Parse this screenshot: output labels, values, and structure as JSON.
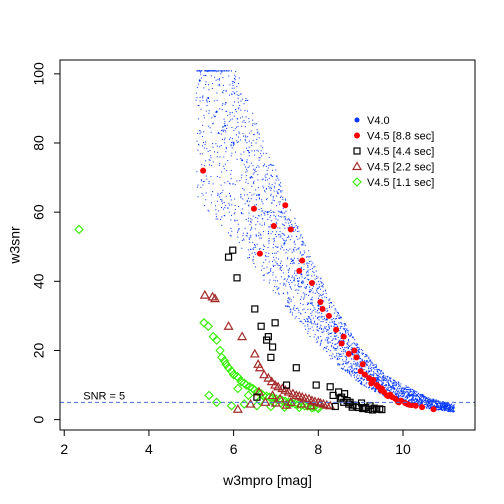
{
  "chart_data": {
    "type": "scatter",
    "title": "",
    "xlabel": "w3mpro [mag]",
    "ylabel": "w3snr",
    "xlim": [
      1.9,
      11.7
    ],
    "ylim": [
      -3,
      104
    ],
    "xticks": [
      2,
      4,
      6,
      8,
      10
    ],
    "yticks": [
      0,
      20,
      40,
      60,
      80,
      100
    ],
    "grid": false,
    "legend_position": "top-right",
    "reference_line": {
      "y": 5,
      "label": "SNR = 5",
      "style": "dashed",
      "color": "#4a6fd0"
    },
    "series": [
      {
        "name": "V4.0",
        "marker": "dot",
        "color": "#0033ff",
        "description_ref": "dense cloud approx. 2900 points, mag 5.1-11.2, snr falling from ~100 to ~3",
        "x": [
          5.2,
          5.4,
          5.6,
          5.8,
          6.0,
          6.2,
          6.4,
          6.6,
          6.8,
          7.0,
          7.2,
          7.4,
          7.6,
          7.8,
          8.0,
          8.2,
          8.4,
          8.6,
          8.8,
          9.0,
          9.2,
          9.4,
          9.6,
          9.8,
          10.0,
          10.2,
          10.4,
          10.6,
          10.8,
          11.0,
          11.2
        ],
        "y": [
          98,
          93,
          89,
          85,
          80,
          75,
          70,
          65,
          60,
          56,
          51,
          46,
          42,
          37,
          33,
          29,
          25,
          22,
          19,
          16,
          14,
          12,
          10,
          9,
          8,
          7,
          6,
          5,
          4.5,
          4,
          3.5
        ]
      },
      {
        "name": "V4.5 [8.8 sec]",
        "marker": "filled-circle",
        "color": "#ff0000",
        "x": [
          5.28,
          6.48,
          6.62,
          7.22,
          7.35,
          7.62,
          7.85,
          8.05,
          8.25,
          8.42,
          8.55,
          8.72,
          8.9,
          9.05,
          9.1,
          9.2,
          9.3,
          9.38,
          9.42,
          9.5,
          9.55,
          9.62,
          9.7,
          9.75,
          9.82,
          9.9,
          9.95,
          10.05,
          10.1,
          10.2,
          10.3,
          10.45,
          10.72,
          6.95,
          7.55,
          8.1,
          8.6,
          8.85,
          9.0,
          9.25,
          9.48,
          9.65,
          9.88,
          10.15
        ],
        "y": [
          72,
          61,
          48,
          62,
          55,
          46,
          39.5,
          34,
          30,
          26,
          22,
          19,
          18,
          16,
          13,
          12,
          11.5,
          10,
          9.5,
          9,
          8,
          7,
          7.2,
          6.5,
          6,
          5,
          5.5,
          4.8,
          4.5,
          4.2,
          4,
          3.6,
          3,
          56,
          43,
          32,
          24,
          20,
          14,
          10.5,
          8.5,
          6.8,
          5.2,
          4.3
        ]
      },
      {
        "name": "V4.5 [4.4 sec]",
        "marker": "open-square",
        "color": "#000000",
        "x": [
          5.88,
          5.98,
          6.08,
          6.5,
          6.65,
          6.78,
          6.82,
          6.88,
          6.92,
          6.98,
          7.48,
          7.95,
          8.28,
          8.35,
          8.48,
          8.52,
          8.55,
          8.6,
          8.62,
          8.68,
          8.72,
          8.75,
          8.82,
          8.9,
          8.95,
          9.02,
          9.05,
          9.12,
          9.18,
          9.22,
          9.28,
          9.32,
          9.38,
          9.45,
          9.5,
          6.55,
          7.25,
          8.4,
          8.8,
          9.08
        ],
        "y": [
          47,
          49,
          41,
          32,
          27,
          23,
          24,
          18,
          21,
          28,
          15,
          10,
          9.5,
          7,
          8,
          6,
          6.5,
          5,
          7.5,
          5.5,
          4.5,
          5,
          4.2,
          4,
          3.5,
          4.8,
          3.2,
          3.5,
          3,
          4,
          2.8,
          3.3,
          3,
          3.1,
          2.9,
          6.5,
          10,
          3.8,
          3.6,
          3.3
        ]
      },
      {
        "name": "V4.5 [2.2 sec]",
        "marker": "open-triangle",
        "color": "#a52a2a",
        "x": [
          5.32,
          5.5,
          5.56,
          5.88,
          6.2,
          6.5,
          6.58,
          6.62,
          6.72,
          6.82,
          6.9,
          6.98,
          7.05,
          7.15,
          7.22,
          7.3,
          7.4,
          7.48,
          7.55,
          7.62,
          7.7,
          7.78,
          7.85,
          7.92,
          8.0,
          8.05,
          8.12,
          8.2,
          8.28,
          6.6,
          6.92,
          7.1,
          7.35,
          7.6,
          7.82,
          6.1,
          6.4,
          6.75,
          7.0,
          7.25
        ],
        "y": [
          36,
          35.5,
          35,
          27,
          24,
          19,
          16,
          15,
          13,
          12,
          11,
          10,
          9.5,
          9,
          8.5,
          8,
          7.5,
          7,
          6.8,
          6.5,
          6.2,
          6,
          5.5,
          5.2,
          5,
          4.8,
          4.5,
          4.2,
          4,
          8,
          7,
          6,
          5,
          4.5,
          4,
          3,
          4.5,
          5,
          4.8,
          4.2
        ]
      },
      {
        "name": "V4.5 [1.1 sec]",
        "marker": "open-diamond",
        "color": "#33ee00",
        "x": [
          2.35,
          5.3,
          5.4,
          5.52,
          5.6,
          5.68,
          5.72,
          5.78,
          5.82,
          5.88,
          5.95,
          6.0,
          6.08,
          6.12,
          6.18,
          6.25,
          6.3,
          6.38,
          6.45,
          6.5,
          6.58,
          6.65,
          6.7,
          6.78,
          6.85,
          6.92,
          7.0,
          7.08,
          7.15,
          7.22,
          7.3,
          7.38,
          7.45,
          7.52,
          7.6,
          7.68,
          7.75,
          7.82,
          7.9,
          7.98,
          5.42,
          5.6,
          5.95,
          6.25,
          6.55,
          6.88,
          7.2,
          7.55,
          7.85,
          8.0,
          6.1,
          6.35,
          6.62,
          6.95,
          7.28
        ],
        "y": [
          55,
          28,
          27,
          24,
          23,
          20,
          18,
          17,
          16,
          15,
          14,
          13,
          12.5,
          12,
          11,
          10.5,
          10,
          9.5,
          9,
          8.5,
          8,
          7.5,
          7,
          6.8,
          6.5,
          6.2,
          6,
          5.8,
          5.5,
          5.3,
          5,
          4.8,
          4.6,
          4.4,
          4.2,
          4,
          3.9,
          3.8,
          3.6,
          3.5,
          7,
          5,
          4,
          4.5,
          4,
          3.8,
          3.6,
          3.5,
          3.4,
          3.2,
          9,
          7,
          5.5,
          4.8,
          4.4
        ]
      }
    ]
  }
}
